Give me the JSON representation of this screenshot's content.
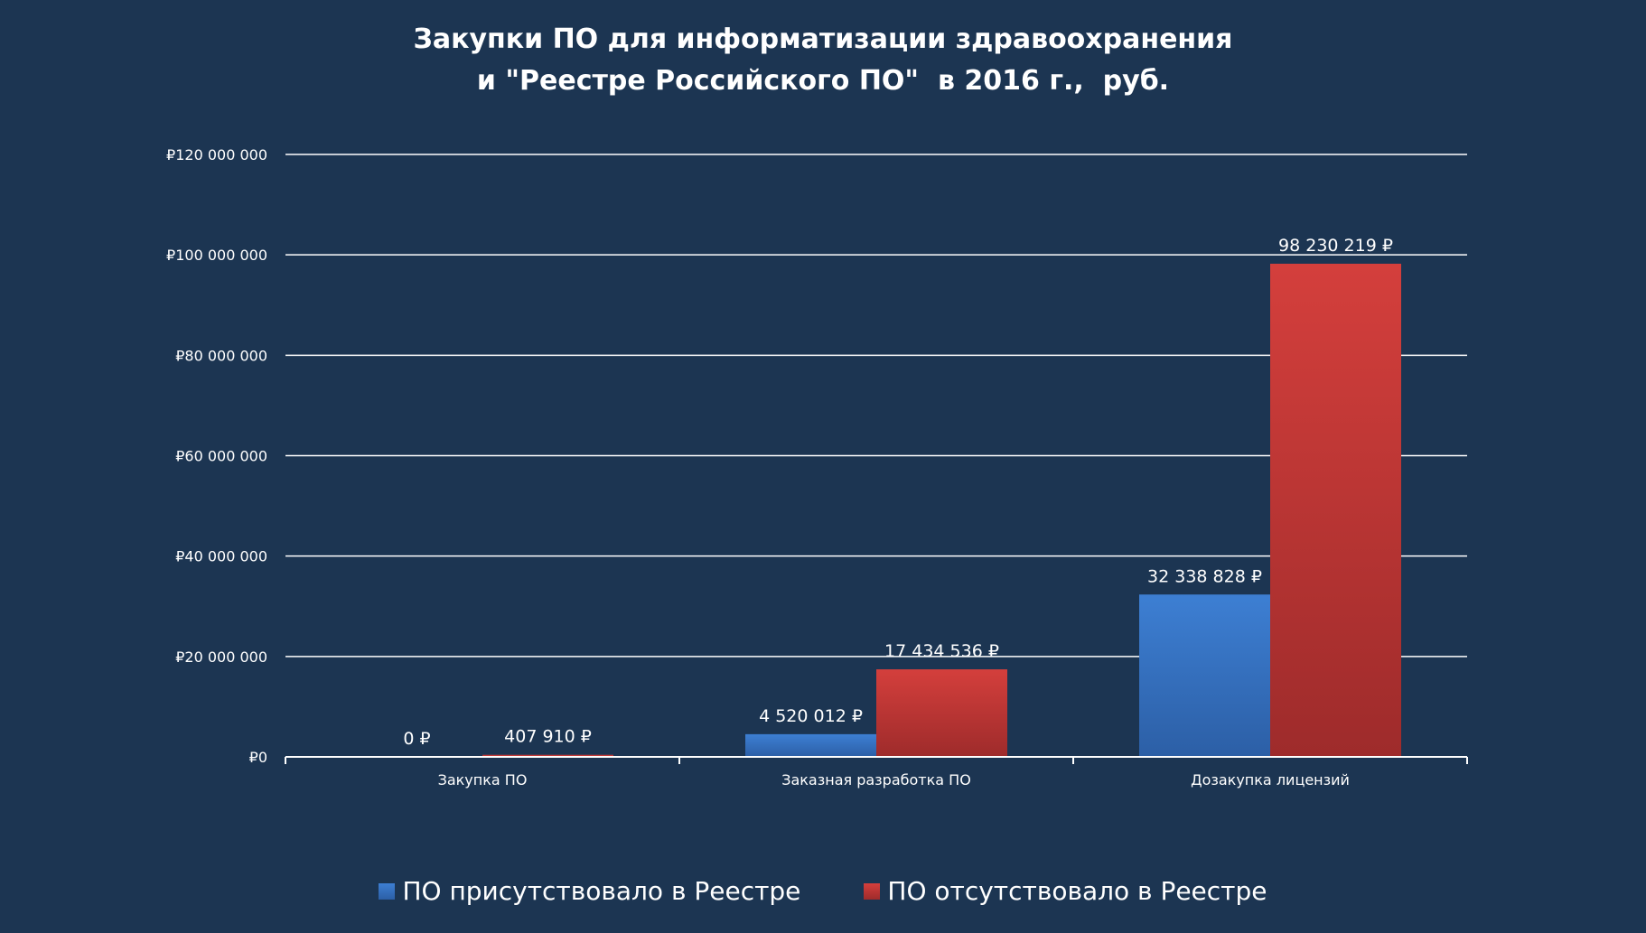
{
  "chart_data": {
    "type": "bar",
    "title_lines": [
      "Закупки ПО для информатизации здравоохранения",
      "и \"Реестре Российского ПО\"  в 2016 г.,  руб."
    ],
    "categories": [
      "Закупка ПО",
      "Заказная разработка ПО",
      "Дозакупка лицензий"
    ],
    "series": [
      {
        "name": "ПО присутствовало в Реестре",
        "color": "#3a78c9",
        "values": [
          0,
          4520012,
          32338828
        ],
        "data_labels": [
          "0 ₽",
          "4 520 012 ₽",
          "32 338 828 ₽"
        ]
      },
      {
        "name": "ПО отсутствовало в Реестре",
        "color": "#c93a39",
        "values": [
          407910,
          17434536,
          98230219
        ],
        "data_labels": [
          "407 910 ₽",
          "17 434 536 ₽",
          "98 230 219 ₽"
        ]
      }
    ],
    "ylim": [
      0,
      120000000
    ],
    "yticks": [
      0,
      20000000,
      40000000,
      60000000,
      80000000,
      100000000,
      120000000
    ],
    "ytick_labels": [
      "₽0",
      "₽20 000 000",
      "₽40 000 000",
      "₽60 000 000",
      "₽80 000 000",
      "₽100 000 000",
      "₽120 000 000"
    ],
    "grid": true,
    "legend": "bottom-center"
  }
}
